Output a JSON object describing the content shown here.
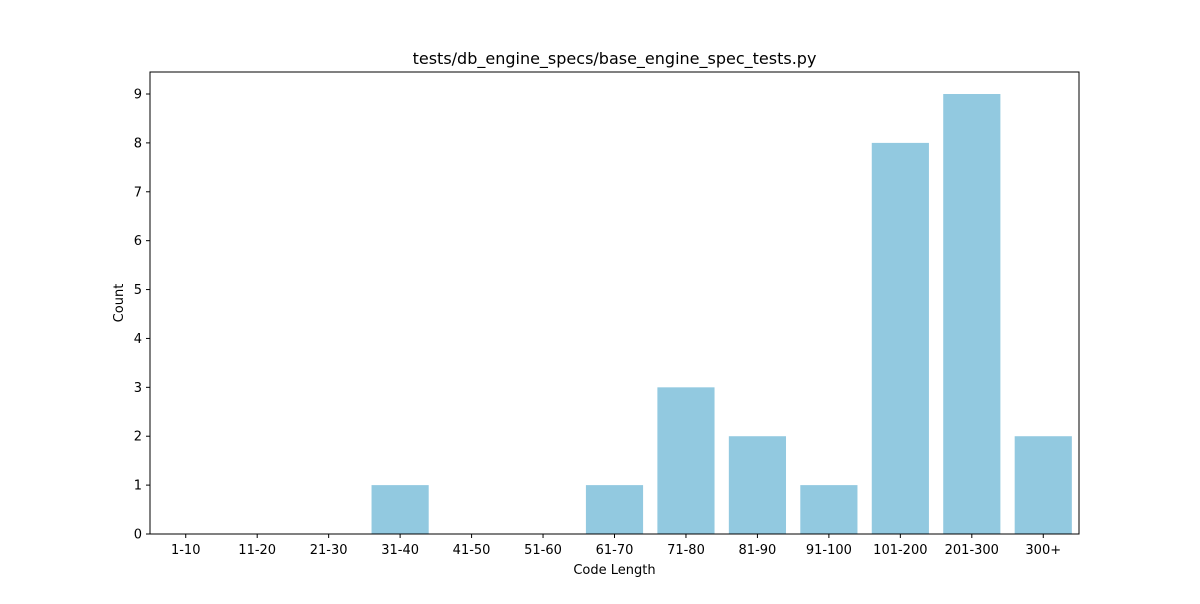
{
  "chart_data": {
    "type": "bar",
    "title": "tests/db_engine_specs/base_engine_spec_tests.py",
    "xlabel": "Code Length",
    "ylabel": "Count",
    "categories": [
      "1-10",
      "11-20",
      "21-30",
      "31-40",
      "41-50",
      "51-60",
      "61-70",
      "71-80",
      "81-90",
      "91-100",
      "101-200",
      "201-300",
      "300+"
    ],
    "values": [
      0,
      0,
      0,
      1,
      0,
      0,
      1,
      3,
      2,
      1,
      8,
      9,
      2
    ],
    "ylim": [
      0,
      9.45
    ],
    "yticks": [
      0,
      1,
      2,
      3,
      4,
      5,
      6,
      7,
      8,
      9
    ],
    "grid": false,
    "bar_color": "#92c9e0"
  }
}
